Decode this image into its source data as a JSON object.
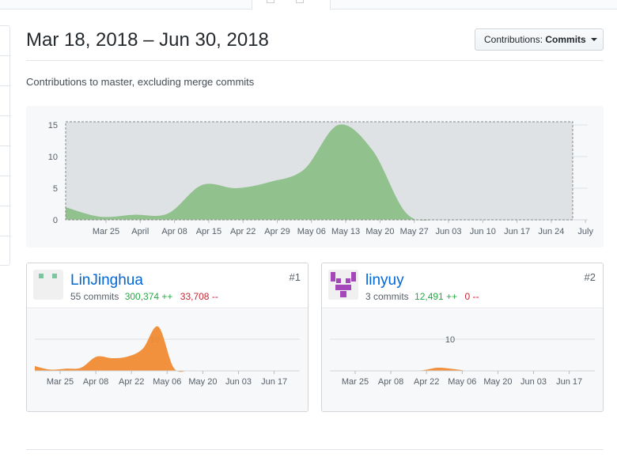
{
  "header": {
    "date_range": "Mar 18, 2018 – Jun 30, 2018",
    "dropdown_label": "Contributions:",
    "dropdown_value": "Commits"
  },
  "subtitle": "Contributions to master, excluding merge commits",
  "colors": {
    "main_area": "#8cbf88",
    "contributor_area": "#f08b33",
    "link": "#0366d6",
    "additions": "#28a745",
    "deletions": "#cb2431"
  },
  "chart_data": [
    {
      "type": "area",
      "x": [
        "Mar 18",
        "Mar 25",
        "Apr 01",
        "Apr 08",
        "Apr 15",
        "Apr 22",
        "Apr 29",
        "May 06",
        "May 13",
        "May 20",
        "May 27",
        "Jun 03",
        "Jun 10",
        "Jun 17",
        "Jun 24",
        "Jul 01"
      ],
      "tick_labels": [
        "Mar 25",
        "April",
        "Apr 08",
        "Apr 15",
        "Apr 22",
        "Apr 29",
        "May 06",
        "May 13",
        "May 20",
        "May 27",
        "Jun 03",
        "Jun 10",
        "Jun 17",
        "Jun 24",
        "July"
      ],
      "values": [
        2,
        0.5,
        0.8,
        1,
        5.5,
        5,
        6,
        8,
        15,
        11,
        1,
        0,
        0,
        0,
        0,
        0
      ],
      "yticks": [
        0,
        5,
        10,
        15
      ],
      "ylim": [
        0,
        17
      ],
      "grid": true
    },
    {
      "type": "area",
      "x": [
        "Mar 18",
        "Mar 25",
        "Apr 01",
        "Apr 08",
        "Apr 15",
        "Apr 22",
        "Apr 29",
        "May 06",
        "May 13",
        "May 20",
        "May 27",
        "Jun 03",
        "Jun 10",
        "Jun 17",
        "Jun 24"
      ],
      "tick_labels": [
        "Mar 25",
        "Apr 08",
        "Apr 22",
        "May 06",
        "May 20",
        "Jun 03",
        "Jun 17"
      ],
      "values": [
        1.5,
        0.4,
        0.7,
        1,
        4.5,
        4,
        4.5,
        7,
        14,
        1,
        0,
        0,
        0,
        0,
        0
      ],
      "yticks": [
        10
      ],
      "ylim": [
        0,
        17
      ]
    },
    {
      "type": "area",
      "x": [
        "Mar 18",
        "Mar 25",
        "Apr 01",
        "Apr 08",
        "Apr 15",
        "Apr 22",
        "Apr 29",
        "May 06",
        "May 13",
        "May 20",
        "May 27",
        "Jun 03",
        "Jun 10",
        "Jun 17",
        "Jun 24"
      ],
      "tick_labels": [
        "Mar 25",
        "Apr 08",
        "Apr 22",
        "May 06",
        "May 20",
        "Jun 03",
        "Jun 17"
      ],
      "values": [
        0,
        0,
        0,
        0,
        0,
        0,
        0.2,
        1,
        0.6,
        0,
        0,
        0,
        0,
        0,
        0
      ],
      "yticks": [
        10
      ],
      "ylim": [
        0,
        17
      ]
    }
  ],
  "contributors": [
    {
      "username": "LinJinghua",
      "commits": "55 commits",
      "additions": "300,374 ++",
      "deletions": "33,708 --",
      "rank": "#1",
      "avatar_color": "#7bc6a0"
    },
    {
      "username": "linyuy",
      "commits": "3 commits",
      "additions": "12,491 ++",
      "deletions": "0 --",
      "rank": "#2",
      "avatar_color": "#a347ba"
    }
  ]
}
